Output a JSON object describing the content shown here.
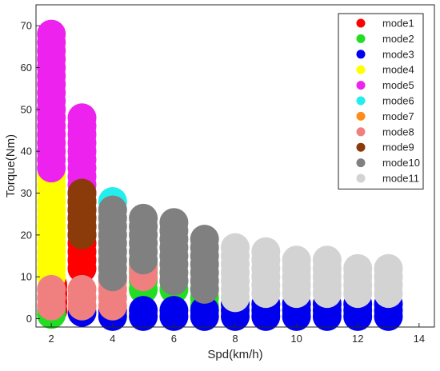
{
  "chart_data": {
    "type": "scatter",
    "xlabel": "Spd(km/h)",
    "ylabel": "Torque(Nm)",
    "xlim": [
      1.5,
      14.5
    ],
    "ylim": [
      -2,
      75
    ],
    "xticks": [
      "2",
      "4",
      "6",
      "8",
      "10",
      "12",
      "14"
    ],
    "yticks": [
      "0",
      "10",
      "20",
      "30",
      "40",
      "50",
      "60",
      "70"
    ],
    "grid": false,
    "legend_position": "top-right",
    "series": [
      {
        "name": "mode1",
        "color": "#ff0000",
        "points": [
          [
            2.05,
            2
          ],
          [
            2.05,
            4
          ],
          [
            2.05,
            6
          ],
          [
            2.05,
            8
          ],
          [
            3,
            12
          ],
          [
            3,
            14
          ],
          [
            3,
            16
          ],
          [
            3,
            18
          ],
          [
            3,
            20
          ],
          [
            3,
            22
          ],
          [
            3,
            24
          ],
          [
            3,
            26
          ],
          [
            3,
            28
          ]
        ]
      },
      {
        "name": "mode2",
        "color": "#22dd22",
        "points": [
          [
            2,
            1
          ],
          [
            2,
            2
          ],
          [
            5,
            7
          ],
          [
            5,
            9
          ],
          [
            5,
            11
          ],
          [
            5,
            13
          ],
          [
            6,
            7
          ],
          [
            6,
            9
          ],
          [
            7,
            3
          ],
          [
            7,
            5
          ],
          [
            7,
            7
          ]
        ]
      },
      {
        "name": "mode3",
        "color": "#0000ee",
        "points": [
          [
            3,
            1.5
          ],
          [
            4,
            0.5
          ],
          [
            4,
            2
          ],
          [
            5,
            0.5
          ],
          [
            5,
            2
          ],
          [
            6,
            0.5
          ],
          [
            6,
            2
          ],
          [
            7,
            0.5
          ],
          [
            7,
            2
          ],
          [
            8,
            0.5
          ],
          [
            8,
            2
          ],
          [
            8,
            3.5
          ],
          [
            9,
            0.5
          ],
          [
            9,
            2
          ],
          [
            9,
            3.5
          ],
          [
            10,
            0.5
          ],
          [
            10,
            2
          ],
          [
            10,
            3.5
          ],
          [
            11,
            0.5
          ],
          [
            11,
            2
          ],
          [
            11,
            3.5
          ],
          [
            12,
            0.5
          ],
          [
            12,
            2
          ],
          [
            12,
            3.5
          ],
          [
            13,
            0.5
          ],
          [
            13,
            2
          ],
          [
            13,
            3.5
          ]
        ]
      },
      {
        "name": "mode4",
        "color": "#ffff00",
        "points": [
          [
            2,
            10
          ],
          [
            2,
            12
          ],
          [
            2,
            14
          ],
          [
            2,
            16
          ],
          [
            2,
            18
          ],
          [
            2,
            20
          ],
          [
            2,
            22
          ],
          [
            2,
            24
          ],
          [
            2,
            26
          ],
          [
            2,
            28
          ],
          [
            2,
            30
          ],
          [
            2,
            32
          ],
          [
            2,
            34
          ]
        ]
      },
      {
        "name": "mode5",
        "color": "#ee22ee",
        "points": [
          [
            2,
            36
          ],
          [
            2,
            38
          ],
          [
            2,
            40
          ],
          [
            2,
            42
          ],
          [
            2,
            44
          ],
          [
            2,
            46
          ],
          [
            2,
            48
          ],
          [
            2,
            50
          ],
          [
            2,
            52
          ],
          [
            2,
            54
          ],
          [
            2,
            56
          ],
          [
            2,
            58
          ],
          [
            2,
            60
          ],
          [
            2,
            62
          ],
          [
            2,
            64
          ],
          [
            2,
            66
          ],
          [
            2,
            68
          ],
          [
            3,
            30
          ],
          [
            3,
            32
          ],
          [
            3,
            34
          ],
          [
            3,
            36
          ],
          [
            3,
            38
          ],
          [
            3,
            40
          ],
          [
            3,
            42
          ],
          [
            3,
            44
          ],
          [
            3,
            46
          ],
          [
            3,
            48
          ]
        ]
      },
      {
        "name": "mode6",
        "color": "#22eeee",
        "points": [
          [
            4,
            26
          ],
          [
            4,
            28
          ]
        ]
      },
      {
        "name": "mode7",
        "color": "#ff8c1a",
        "points": []
      },
      {
        "name": "mode8",
        "color": "#f08080",
        "points": [
          [
            2,
            3
          ],
          [
            2,
            5
          ],
          [
            2,
            7
          ],
          [
            3,
            3
          ],
          [
            3,
            5
          ],
          [
            3,
            7
          ],
          [
            4,
            3
          ],
          [
            4,
            5
          ],
          [
            4,
            7
          ],
          [
            4,
            9
          ],
          [
            5,
            10
          ],
          [
            5,
            12
          ]
        ]
      },
      {
        "name": "mode9",
        "color": "#8b3a0a",
        "points": [
          [
            3,
            20
          ],
          [
            3,
            22
          ],
          [
            3,
            24
          ],
          [
            3,
            26
          ],
          [
            3,
            28
          ],
          [
            3,
            30
          ]
        ]
      },
      {
        "name": "mode10",
        "color": "#808080",
        "points": [
          [
            4,
            10
          ],
          [
            4,
            12
          ],
          [
            4,
            14
          ],
          [
            4,
            16
          ],
          [
            4,
            18
          ],
          [
            4,
            20
          ],
          [
            4,
            22
          ],
          [
            4,
            24
          ],
          [
            4,
            26
          ],
          [
            5,
            14
          ],
          [
            5,
            16
          ],
          [
            5,
            18
          ],
          [
            5,
            20
          ],
          [
            5,
            22
          ],
          [
            5,
            24
          ],
          [
            6,
            9
          ],
          [
            6,
            11
          ],
          [
            6,
            13
          ],
          [
            6,
            15
          ],
          [
            6,
            17
          ],
          [
            6,
            19
          ],
          [
            6,
            21
          ],
          [
            6,
            23
          ],
          [
            7,
            7
          ],
          [
            7,
            9
          ],
          [
            7,
            11
          ],
          [
            7,
            13
          ],
          [
            7,
            15
          ],
          [
            7,
            17
          ],
          [
            7,
            19
          ]
        ]
      },
      {
        "name": "mode11",
        "color": "#d3d3d3",
        "points": [
          [
            8,
            5
          ],
          [
            8,
            7
          ],
          [
            8,
            9
          ],
          [
            8,
            11
          ],
          [
            8,
            13
          ],
          [
            8,
            15
          ],
          [
            8,
            17
          ],
          [
            9,
            6
          ],
          [
            9,
            8
          ],
          [
            9,
            10
          ],
          [
            9,
            12
          ],
          [
            9,
            14
          ],
          [
            9,
            16
          ],
          [
            10,
            6
          ],
          [
            10,
            8
          ],
          [
            10,
            10
          ],
          [
            10,
            12
          ],
          [
            10,
            14
          ],
          [
            11,
            6
          ],
          [
            11,
            8
          ],
          [
            11,
            10
          ],
          [
            11,
            12
          ],
          [
            11,
            14
          ],
          [
            12,
            6
          ],
          [
            12,
            8
          ],
          [
            12,
            10
          ],
          [
            12,
            12
          ],
          [
            13,
            6
          ],
          [
            13,
            8
          ],
          [
            13,
            10
          ],
          [
            13,
            12
          ]
        ]
      }
    ]
  }
}
